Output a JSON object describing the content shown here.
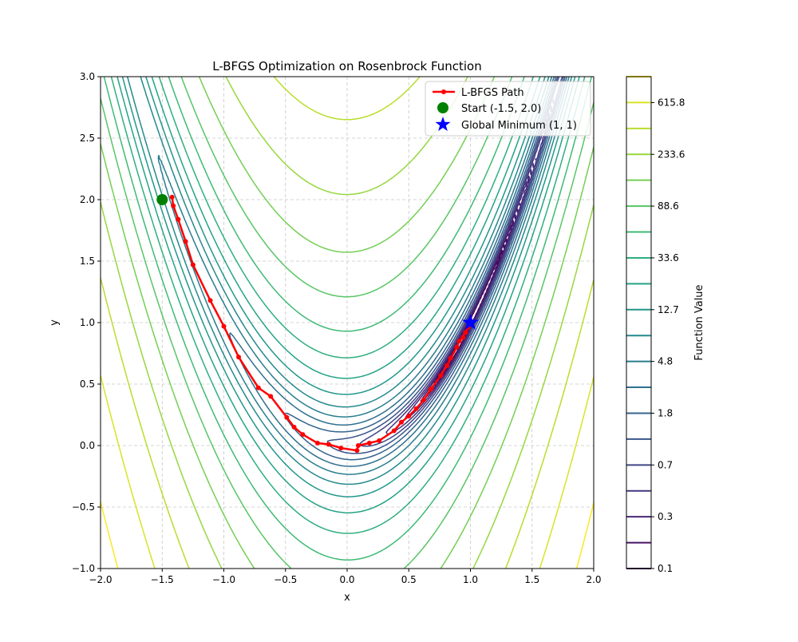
{
  "chart_data": {
    "type": "contour",
    "title": "L-BFGS Optimization on Rosenbrock Function",
    "xlabel": "x",
    "ylabel": "y",
    "xlim": [
      -2.0,
      2.0
    ],
    "ylim": [
      -1.0,
      3.0
    ],
    "grid": true,
    "xticks": [
      "−2.0",
      "−1.5",
      "−1.0",
      "−0.5",
      "0.0",
      "0.5",
      "1.0",
      "1.5",
      "2.0"
    ],
    "xtick_values": [
      -2.0,
      -1.5,
      -1.0,
      -0.5,
      0.0,
      0.5,
      1.0,
      1.5,
      2.0
    ],
    "yticks": [
      "−1.0",
      "−0.5",
      "0.0",
      "0.5",
      "1.0",
      "1.5",
      "2.0",
      "2.5",
      "3.0"
    ],
    "ytick_values": [
      -1.0,
      -0.5,
      0.0,
      0.5,
      1.0,
      1.5,
      2.0,
      2.5,
      3.0
    ],
    "contour_levels": {
      "log10_min": -1,
      "log10_max": 3.3,
      "count": 20
    },
    "colorbar": {
      "label": "Function Value",
      "tick_labels": [
        "0.1",
        "0.3",
        "0.7",
        "1.8",
        "4.8",
        "12.7",
        "33.6",
        "88.6",
        "233.6",
        "615.8"
      ],
      "colormap": "viridis"
    },
    "series": [
      {
        "name": "L-BFGS Path",
        "color": "#ff0000",
        "x": [
          -1.42,
          -1.41,
          -1.37,
          -1.31,
          -1.25,
          -1.11,
          -1.0,
          -0.88,
          -0.72,
          -0.62,
          -0.49,
          -0.43,
          -0.36,
          -0.24,
          -0.15,
          -0.05,
          0.08,
          0.09,
          0.18,
          0.26,
          0.38,
          0.44,
          0.5,
          0.56,
          0.62,
          0.68,
          0.76,
          0.81,
          0.84,
          0.89,
          0.91,
          0.94,
          0.96,
          0.98,
          1.0
        ],
        "y": [
          2.02,
          1.95,
          1.84,
          1.66,
          1.47,
          1.18,
          0.97,
          0.72,
          0.47,
          0.4,
          0.23,
          0.15,
          0.09,
          0.02,
          0.01,
          -0.02,
          -0.04,
          0.0,
          0.02,
          0.04,
          0.12,
          0.19,
          0.24,
          0.3,
          0.37,
          0.46,
          0.57,
          0.65,
          0.71,
          0.8,
          0.85,
          0.88,
          0.92,
          0.96,
          1.0
        ]
      },
      {
        "name": "Start (-1.5, 2.0)",
        "color": "#008000",
        "marker": "circle",
        "x": [
          -1.5
        ],
        "y": [
          2.0
        ]
      },
      {
        "name": "Global Minimum (1, 1)",
        "color": "#0000ff",
        "marker": "star",
        "x": [
          1.0
        ],
        "y": [
          1.0
        ]
      }
    ],
    "legend": {
      "position": "top-right",
      "entries": [
        "L-BFGS Path",
        "Start (-1.5, 2.0)",
        "Global Minimum (1, 1)"
      ]
    }
  }
}
